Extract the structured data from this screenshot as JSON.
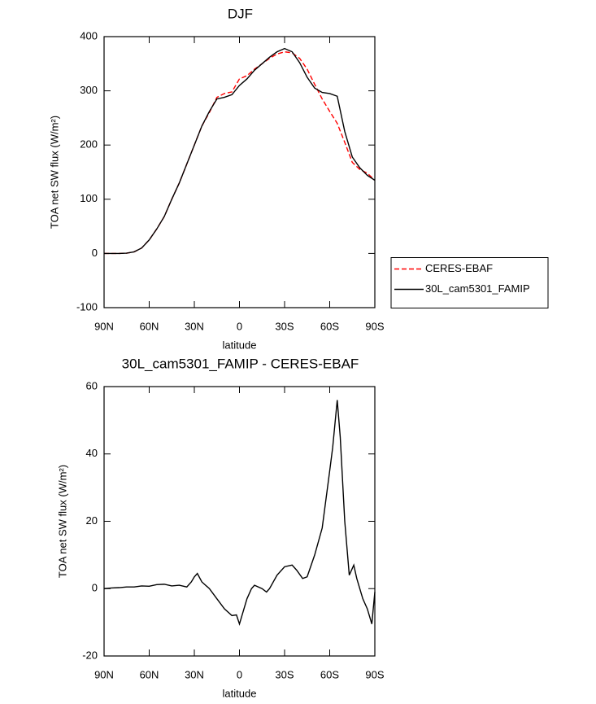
{
  "chart_data": [
    {
      "type": "line",
      "title": "DJF",
      "xlabel": "latitude",
      "ylabel": "TOA net SW flux (W/m²)",
      "x": [
        90,
        85,
        80,
        75,
        70,
        65,
        60,
        55,
        50,
        45,
        40,
        35,
        30,
        25,
        20,
        15,
        10,
        5,
        0,
        -5,
        -10,
        -15,
        -20,
        -25,
        -30,
        -35,
        -40,
        -45,
        -50,
        -55,
        -60,
        -65,
        -70,
        -75,
        -80,
        -85,
        -90
      ],
      "series": [
        {
          "name": "CERES-EBAF",
          "color": "#ff0000",
          "dashed": true,
          "values": [
            0,
            0,
            0,
            0.5,
            3,
            10,
            25,
            45,
            68,
            100,
            130,
            165,
            200,
            235,
            260,
            288,
            295,
            298,
            322,
            328,
            340,
            350,
            360,
            368,
            372,
            370,
            360,
            340,
            312,
            285,
            262,
            240,
            205,
            168,
            155,
            148,
            135
          ]
        },
        {
          "name": "30L_cam5301_FAMIP",
          "color": "#000000",
          "dashed": false,
          "values": [
            0,
            0,
            0,
            0.5,
            3,
            10,
            25,
            45,
            68,
            100,
            130,
            165,
            200,
            235,
            262,
            285,
            288,
            293,
            310,
            322,
            338,
            350,
            362,
            372,
            378,
            372,
            352,
            325,
            305,
            297,
            295,
            290,
            225,
            178,
            158,
            144,
            135
          ]
        }
      ],
      "xlim": [
        90,
        -90
      ],
      "xticks": [
        {
          "value": 90,
          "label": "90N"
        },
        {
          "value": 60,
          "label": "60N"
        },
        {
          "value": 30,
          "label": "30N"
        },
        0,
        {
          "value": -30,
          "label": "30S"
        },
        {
          "value": -60,
          "label": "60S"
        },
        {
          "value": -90,
          "label": "90S"
        }
      ],
      "ylim": [
        -100,
        400
      ],
      "yticks": [
        -100,
        0,
        100,
        200,
        300,
        400
      ],
      "legend": "right"
    },
    {
      "type": "line",
      "title": "30L_cam5301_FAMIP - CERES-EBAF",
      "xlabel": "latitude",
      "ylabel": "TOA net SW flux (W/m²)",
      "x": [
        90,
        85,
        80,
        75,
        70,
        65,
        60,
        55,
        50,
        45,
        40,
        35,
        32,
        30,
        28,
        25,
        20,
        15,
        10,
        5,
        2,
        0,
        -3,
        -5,
        -8,
        -10,
        -15,
        -18,
        -20,
        -25,
        -30,
        -35,
        -38,
        -42,
        -45,
        -50,
        -55,
        -60,
        -62,
        -65,
        -67,
        -70,
        -73,
        -76,
        -78,
        -82,
        -85,
        -88,
        -90
      ],
      "values": [
        0,
        0.2,
        0.3,
        0.5,
        0.5,
        0.8,
        0.7,
        1.2,
        1.3,
        0.8,
        1.0,
        0.5,
        2,
        3.5,
        4.5,
        2,
        0,
        -3,
        -6,
        -8,
        -7.8,
        -10.5,
        -6,
        -3,
        0,
        1,
        0,
        -1,
        0,
        4,
        6.5,
        7,
        5.5,
        3,
        3.5,
        10,
        18,
        35,
        42,
        56,
        45,
        20,
        4,
        7,
        3,
        -3,
        -6,
        -10.5,
        -1
      ],
      "color": "#000000",
      "xlim": [
        90,
        -90
      ],
      "xticks": [
        {
          "value": 90,
          "label": "90N"
        },
        {
          "value": 60,
          "label": "60N"
        },
        {
          "value": 30,
          "label": "30N"
        },
        0,
        {
          "value": -30,
          "label": "30S"
        },
        {
          "value": -60,
          "label": "60S"
        },
        {
          "value": -90,
          "label": "90S"
        }
      ],
      "ylim": [
        -20,
        60
      ],
      "yticks": [
        -20,
        0,
        20,
        40,
        60
      ]
    }
  ]
}
